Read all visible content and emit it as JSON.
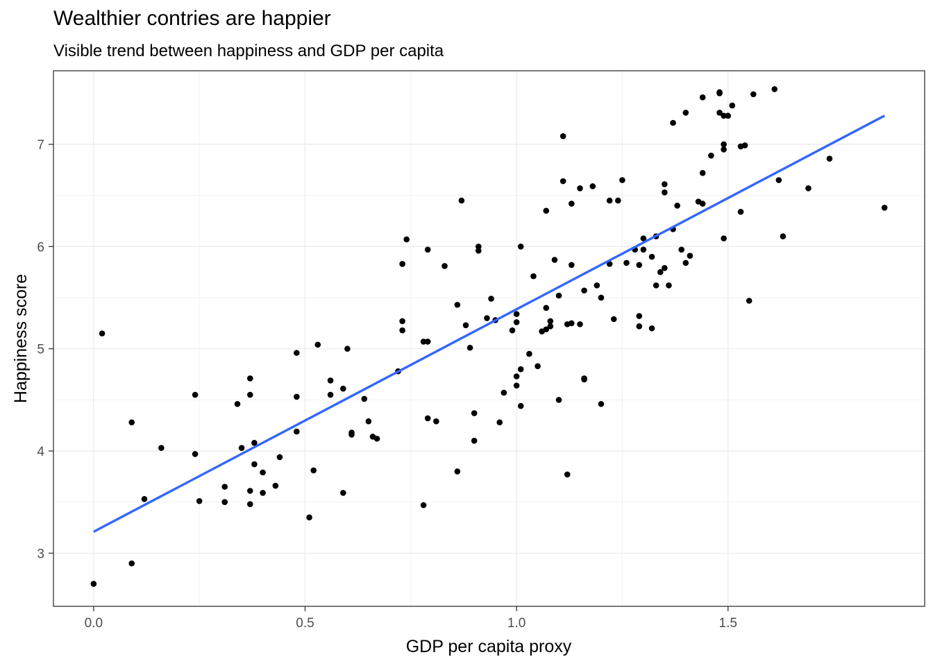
{
  "chart_data": {
    "type": "scatter",
    "title": "Wealthier contries are happier",
    "subtitle": "Visible trend between happiness and GDP per capita",
    "xlabel": "GDP per capita proxy",
    "ylabel": "Happiness score",
    "xlim": [
      -0.095,
      1.965
    ],
    "ylim": [
      2.48,
      7.72
    ],
    "x_ticks": [
      0.0,
      0.5,
      1.0,
      1.5
    ],
    "x_tick_labels": [
      "0.0",
      "0.5",
      "1.0",
      "1.5"
    ],
    "y_ticks": [
      3,
      4,
      5,
      6,
      7
    ],
    "y_tick_labels": [
      "3",
      "4",
      "5",
      "6",
      "7"
    ],
    "grid": true,
    "point_color": "#000000",
    "trend_color": "#3366ff",
    "trend_line": {
      "x": [
        0.0,
        1.87
      ],
      "y": [
        3.21,
        7.28
      ]
    },
    "points": [
      {
        "x": 0.0,
        "y": 2.7
      },
      {
        "x": 0.09,
        "y": 2.9
      },
      {
        "x": 0.02,
        "y": 5.15
      },
      {
        "x": 0.09,
        "y": 4.28
      },
      {
        "x": 0.12,
        "y": 3.53
      },
      {
        "x": 0.16,
        "y": 4.03
      },
      {
        "x": 0.24,
        "y": 4.55
      },
      {
        "x": 0.24,
        "y": 3.97
      },
      {
        "x": 0.25,
        "y": 3.51
      },
      {
        "x": 0.31,
        "y": 3.65
      },
      {
        "x": 0.31,
        "y": 3.5
      },
      {
        "x": 0.34,
        "y": 4.46
      },
      {
        "x": 0.35,
        "y": 4.03
      },
      {
        "x": 0.37,
        "y": 4.71
      },
      {
        "x": 0.37,
        "y": 4.55
      },
      {
        "x": 0.37,
        "y": 3.61
      },
      {
        "x": 0.37,
        "y": 3.48
      },
      {
        "x": 0.38,
        "y": 3.87
      },
      {
        "x": 0.38,
        "y": 4.08
      },
      {
        "x": 0.4,
        "y": 3.79
      },
      {
        "x": 0.4,
        "y": 3.59
      },
      {
        "x": 0.43,
        "y": 3.66
      },
      {
        "x": 0.44,
        "y": 3.94
      },
      {
        "x": 0.48,
        "y": 4.96
      },
      {
        "x": 0.48,
        "y": 4.53
      },
      {
        "x": 0.48,
        "y": 4.19
      },
      {
        "x": 0.51,
        "y": 3.35
      },
      {
        "x": 0.52,
        "y": 3.81
      },
      {
        "x": 0.53,
        "y": 5.04
      },
      {
        "x": 0.56,
        "y": 4.69
      },
      {
        "x": 0.56,
        "y": 4.55
      },
      {
        "x": 0.59,
        "y": 4.61
      },
      {
        "x": 0.59,
        "y": 3.59
      },
      {
        "x": 0.6,
        "y": 5.0
      },
      {
        "x": 0.61,
        "y": 4.18
      },
      {
        "x": 0.61,
        "y": 4.16
      },
      {
        "x": 0.64,
        "y": 4.51
      },
      {
        "x": 0.65,
        "y": 4.29
      },
      {
        "x": 0.66,
        "y": 4.14
      },
      {
        "x": 0.67,
        "y": 4.12
      },
      {
        "x": 0.72,
        "y": 4.78
      },
      {
        "x": 0.73,
        "y": 5.27
      },
      {
        "x": 0.73,
        "y": 5.18
      },
      {
        "x": 0.73,
        "y": 5.83
      },
      {
        "x": 0.74,
        "y": 6.07
      },
      {
        "x": 0.78,
        "y": 3.47
      },
      {
        "x": 0.78,
        "y": 5.07
      },
      {
        "x": 0.79,
        "y": 5.07
      },
      {
        "x": 0.79,
        "y": 5.97
      },
      {
        "x": 0.79,
        "y": 4.32
      },
      {
        "x": 0.81,
        "y": 4.29
      },
      {
        "x": 0.83,
        "y": 5.81
      },
      {
        "x": 0.86,
        "y": 3.8
      },
      {
        "x": 0.86,
        "y": 5.43
      },
      {
        "x": 0.87,
        "y": 6.45
      },
      {
        "x": 0.88,
        "y": 5.23
      },
      {
        "x": 0.89,
        "y": 5.01
      },
      {
        "x": 0.9,
        "y": 4.1
      },
      {
        "x": 0.9,
        "y": 4.37
      },
      {
        "x": 0.91,
        "y": 5.96
      },
      {
        "x": 0.91,
        "y": 6.0
      },
      {
        "x": 0.93,
        "y": 5.3
      },
      {
        "x": 0.94,
        "y": 5.49
      },
      {
        "x": 0.95,
        "y": 5.28
      },
      {
        "x": 0.96,
        "y": 4.28
      },
      {
        "x": 0.97,
        "y": 4.57
      },
      {
        "x": 0.99,
        "y": 5.18
      },
      {
        "x": 1.0,
        "y": 5.34
      },
      {
        "x": 1.0,
        "y": 4.73
      },
      {
        "x": 1.0,
        "y": 4.64
      },
      {
        "x": 1.0,
        "y": 5.26
      },
      {
        "x": 1.01,
        "y": 6.0
      },
      {
        "x": 1.01,
        "y": 4.8
      },
      {
        "x": 1.01,
        "y": 4.44
      },
      {
        "x": 1.03,
        "y": 4.95
      },
      {
        "x": 1.04,
        "y": 5.71
      },
      {
        "x": 1.05,
        "y": 4.83
      },
      {
        "x": 1.06,
        "y": 5.17
      },
      {
        "x": 1.07,
        "y": 5.19
      },
      {
        "x": 1.07,
        "y": 5.4
      },
      {
        "x": 1.07,
        "y": 6.35
      },
      {
        "x": 1.08,
        "y": 5.22
      },
      {
        "x": 1.08,
        "y": 5.27
      },
      {
        "x": 1.09,
        "y": 5.87
      },
      {
        "x": 1.1,
        "y": 5.52
      },
      {
        "x": 1.1,
        "y": 4.5
      },
      {
        "x": 1.11,
        "y": 7.08
      },
      {
        "x": 1.11,
        "y": 6.64
      },
      {
        "x": 1.12,
        "y": 5.24
      },
      {
        "x": 1.12,
        "y": 3.77
      },
      {
        "x": 1.13,
        "y": 6.42
      },
      {
        "x": 1.13,
        "y": 5.25
      },
      {
        "x": 1.13,
        "y": 5.82
      },
      {
        "x": 1.15,
        "y": 6.57
      },
      {
        "x": 1.15,
        "y": 5.24
      },
      {
        "x": 1.16,
        "y": 5.57
      },
      {
        "x": 1.16,
        "y": 4.7
      },
      {
        "x": 1.16,
        "y": 4.71
      },
      {
        "x": 1.18,
        "y": 6.59
      },
      {
        "x": 1.19,
        "y": 5.62
      },
      {
        "x": 1.2,
        "y": 5.5
      },
      {
        "x": 1.2,
        "y": 4.46
      },
      {
        "x": 1.22,
        "y": 6.45
      },
      {
        "x": 1.22,
        "y": 5.83
      },
      {
        "x": 1.23,
        "y": 5.29
      },
      {
        "x": 1.24,
        "y": 6.45
      },
      {
        "x": 1.25,
        "y": 6.65
      },
      {
        "x": 1.26,
        "y": 5.84
      },
      {
        "x": 1.28,
        "y": 5.97
      },
      {
        "x": 1.29,
        "y": 5.82
      },
      {
        "x": 1.29,
        "y": 5.32
      },
      {
        "x": 1.29,
        "y": 5.22
      },
      {
        "x": 1.3,
        "y": 6.08
      },
      {
        "x": 1.3,
        "y": 5.97
      },
      {
        "x": 1.32,
        "y": 5.9
      },
      {
        "x": 1.32,
        "y": 5.2
      },
      {
        "x": 1.33,
        "y": 6.1
      },
      {
        "x": 1.33,
        "y": 5.62
      },
      {
        "x": 1.34,
        "y": 5.75
      },
      {
        "x": 1.35,
        "y": 6.53
      },
      {
        "x": 1.35,
        "y": 5.79
      },
      {
        "x": 1.35,
        "y": 6.61
      },
      {
        "x": 1.36,
        "y": 5.62
      },
      {
        "x": 1.37,
        "y": 6.17
      },
      {
        "x": 1.37,
        "y": 7.21
      },
      {
        "x": 1.38,
        "y": 6.4
      },
      {
        "x": 1.39,
        "y": 5.97
      },
      {
        "x": 1.4,
        "y": 7.31
      },
      {
        "x": 1.4,
        "y": 5.84
      },
      {
        "x": 1.41,
        "y": 5.91
      },
      {
        "x": 1.43,
        "y": 6.44
      },
      {
        "x": 1.44,
        "y": 6.42
      },
      {
        "x": 1.44,
        "y": 6.72
      },
      {
        "x": 1.44,
        "y": 7.46
      },
      {
        "x": 1.46,
        "y": 6.89
      },
      {
        "x": 1.48,
        "y": 7.51
      },
      {
        "x": 1.48,
        "y": 7.5
      },
      {
        "x": 1.48,
        "y": 7.31
      },
      {
        "x": 1.49,
        "y": 7.28
      },
      {
        "x": 1.49,
        "y": 7.0
      },
      {
        "x": 1.49,
        "y": 6.95
      },
      {
        "x": 1.49,
        "y": 6.08
      },
      {
        "x": 1.5,
        "y": 7.28
      },
      {
        "x": 1.51,
        "y": 7.38
      },
      {
        "x": 1.53,
        "y": 6.34
      },
      {
        "x": 1.53,
        "y": 6.98
      },
      {
        "x": 1.54,
        "y": 6.99
      },
      {
        "x": 1.55,
        "y": 5.47
      },
      {
        "x": 1.56,
        "y": 7.49
      },
      {
        "x": 1.61,
        "y": 7.54
      },
      {
        "x": 1.62,
        "y": 6.65
      },
      {
        "x": 1.63,
        "y": 6.1
      },
      {
        "x": 1.69,
        "y": 6.57
      },
      {
        "x": 1.74,
        "y": 6.86
      },
      {
        "x": 1.87,
        "y": 6.38
      }
    ]
  }
}
